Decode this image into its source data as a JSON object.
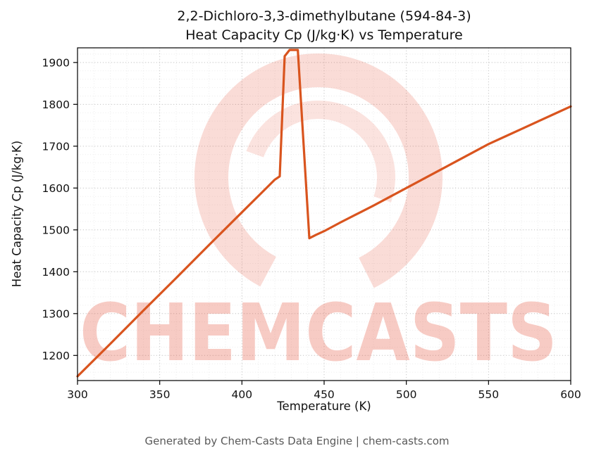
{
  "title_line1": "2,2-Dichloro-3,3-dimethylbutane (594-84-3)",
  "title_line2": "Heat Capacity Cp (J/kg·K) vs Temperature",
  "footer": "Generated by Chem-Casts Data Engine | chem-casts.com",
  "watermark": {
    "text": "CHEMCASTS",
    "color": "#e8604a",
    "text_opacity": 0.32,
    "logo_opacity": 0.22
  },
  "chart_data": {
    "type": "line",
    "title": "2,2-Dichloro-3,3-dimethylbutane (594-84-3) Heat Capacity Cp (J/kg·K) vs Temperature",
    "xlabel": "Temperature (K)",
    "ylabel": "Heat Capacity Cp (J/kg·K)",
    "xlim": [
      300,
      600
    ],
    "ylim": [
      1140,
      1935
    ],
    "xticks": [
      300,
      350,
      400,
      450,
      500,
      550,
      600
    ],
    "yticks": [
      1200,
      1300,
      1400,
      1500,
      1600,
      1700,
      1800,
      1900
    ],
    "x_minor_step": 10,
    "y_minor_step": 20,
    "grid": true,
    "legend": "none",
    "line_color": "#d9541e",
    "line_width": 3.2,
    "series": [
      {
        "name": "Heat Capacity Cp",
        "x": [
          300,
          320,
          340,
          360,
          380,
          400,
          410,
          420,
          423,
          426,
          429,
          434,
          441,
          445,
          450,
          460,
          470,
          480,
          490,
          500,
          510,
          520,
          530,
          540,
          550,
          560,
          570,
          580,
          590,
          600
        ],
        "y": [
          1150,
          1228,
          1307,
          1385,
          1464,
          1542,
          1581,
          1620,
          1628,
          1915,
          1930,
          1930,
          1480,
          1488,
          1497,
          1518,
          1538,
          1558,
          1579,
          1600,
          1621,
          1642,
          1663,
          1684,
          1705,
          1723,
          1741,
          1759,
          1777,
          1795
        ]
      }
    ]
  }
}
